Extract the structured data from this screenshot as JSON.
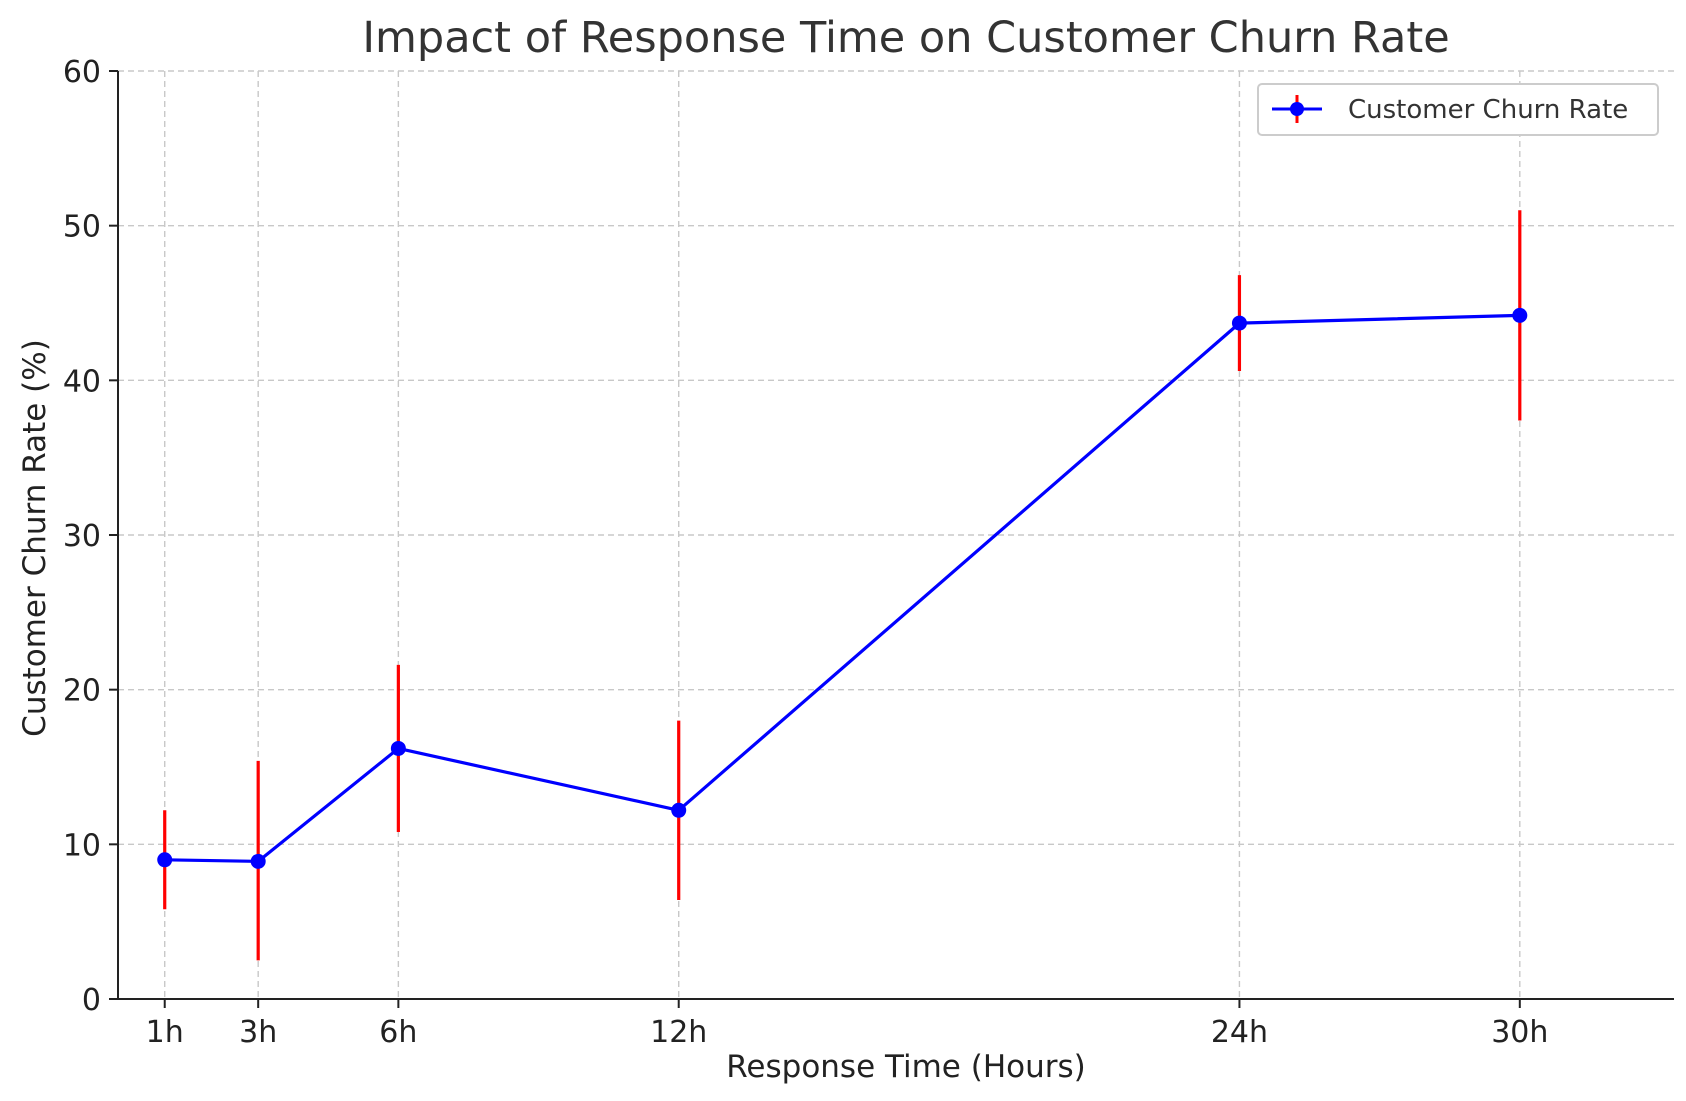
{
  "chart_data": {
    "type": "line",
    "title": "Impact of Response Time on Customer Churn Rate",
    "xlabel": "Response Time (Hours)",
    "ylabel": "Customer Churn Rate (%)",
    "x": [
      1,
      3,
      6,
      12,
      24,
      30
    ],
    "x_tick_labels": [
      "1h",
      "3h",
      "6h",
      "12h",
      "24h",
      "30h"
    ],
    "ylim": [
      0,
      60
    ],
    "y_ticks": [
      0,
      10,
      20,
      30,
      40,
      50,
      60
    ],
    "grid": true,
    "legend_position": "upper right",
    "series": [
      {
        "name": "Customer Churn Rate",
        "color": "#0000ff",
        "marker": "circle",
        "error_color": "#ff0000",
        "values": [
          9.0,
          8.9,
          16.2,
          12.2,
          43.7,
          44.2
        ],
        "error_lower": [
          5.8,
          2.5,
          10.8,
          6.4,
          40.6,
          37.4
        ],
        "error_upper": [
          12.2,
          15.4,
          21.6,
          18.0,
          46.8,
          51.0
        ]
      }
    ]
  }
}
